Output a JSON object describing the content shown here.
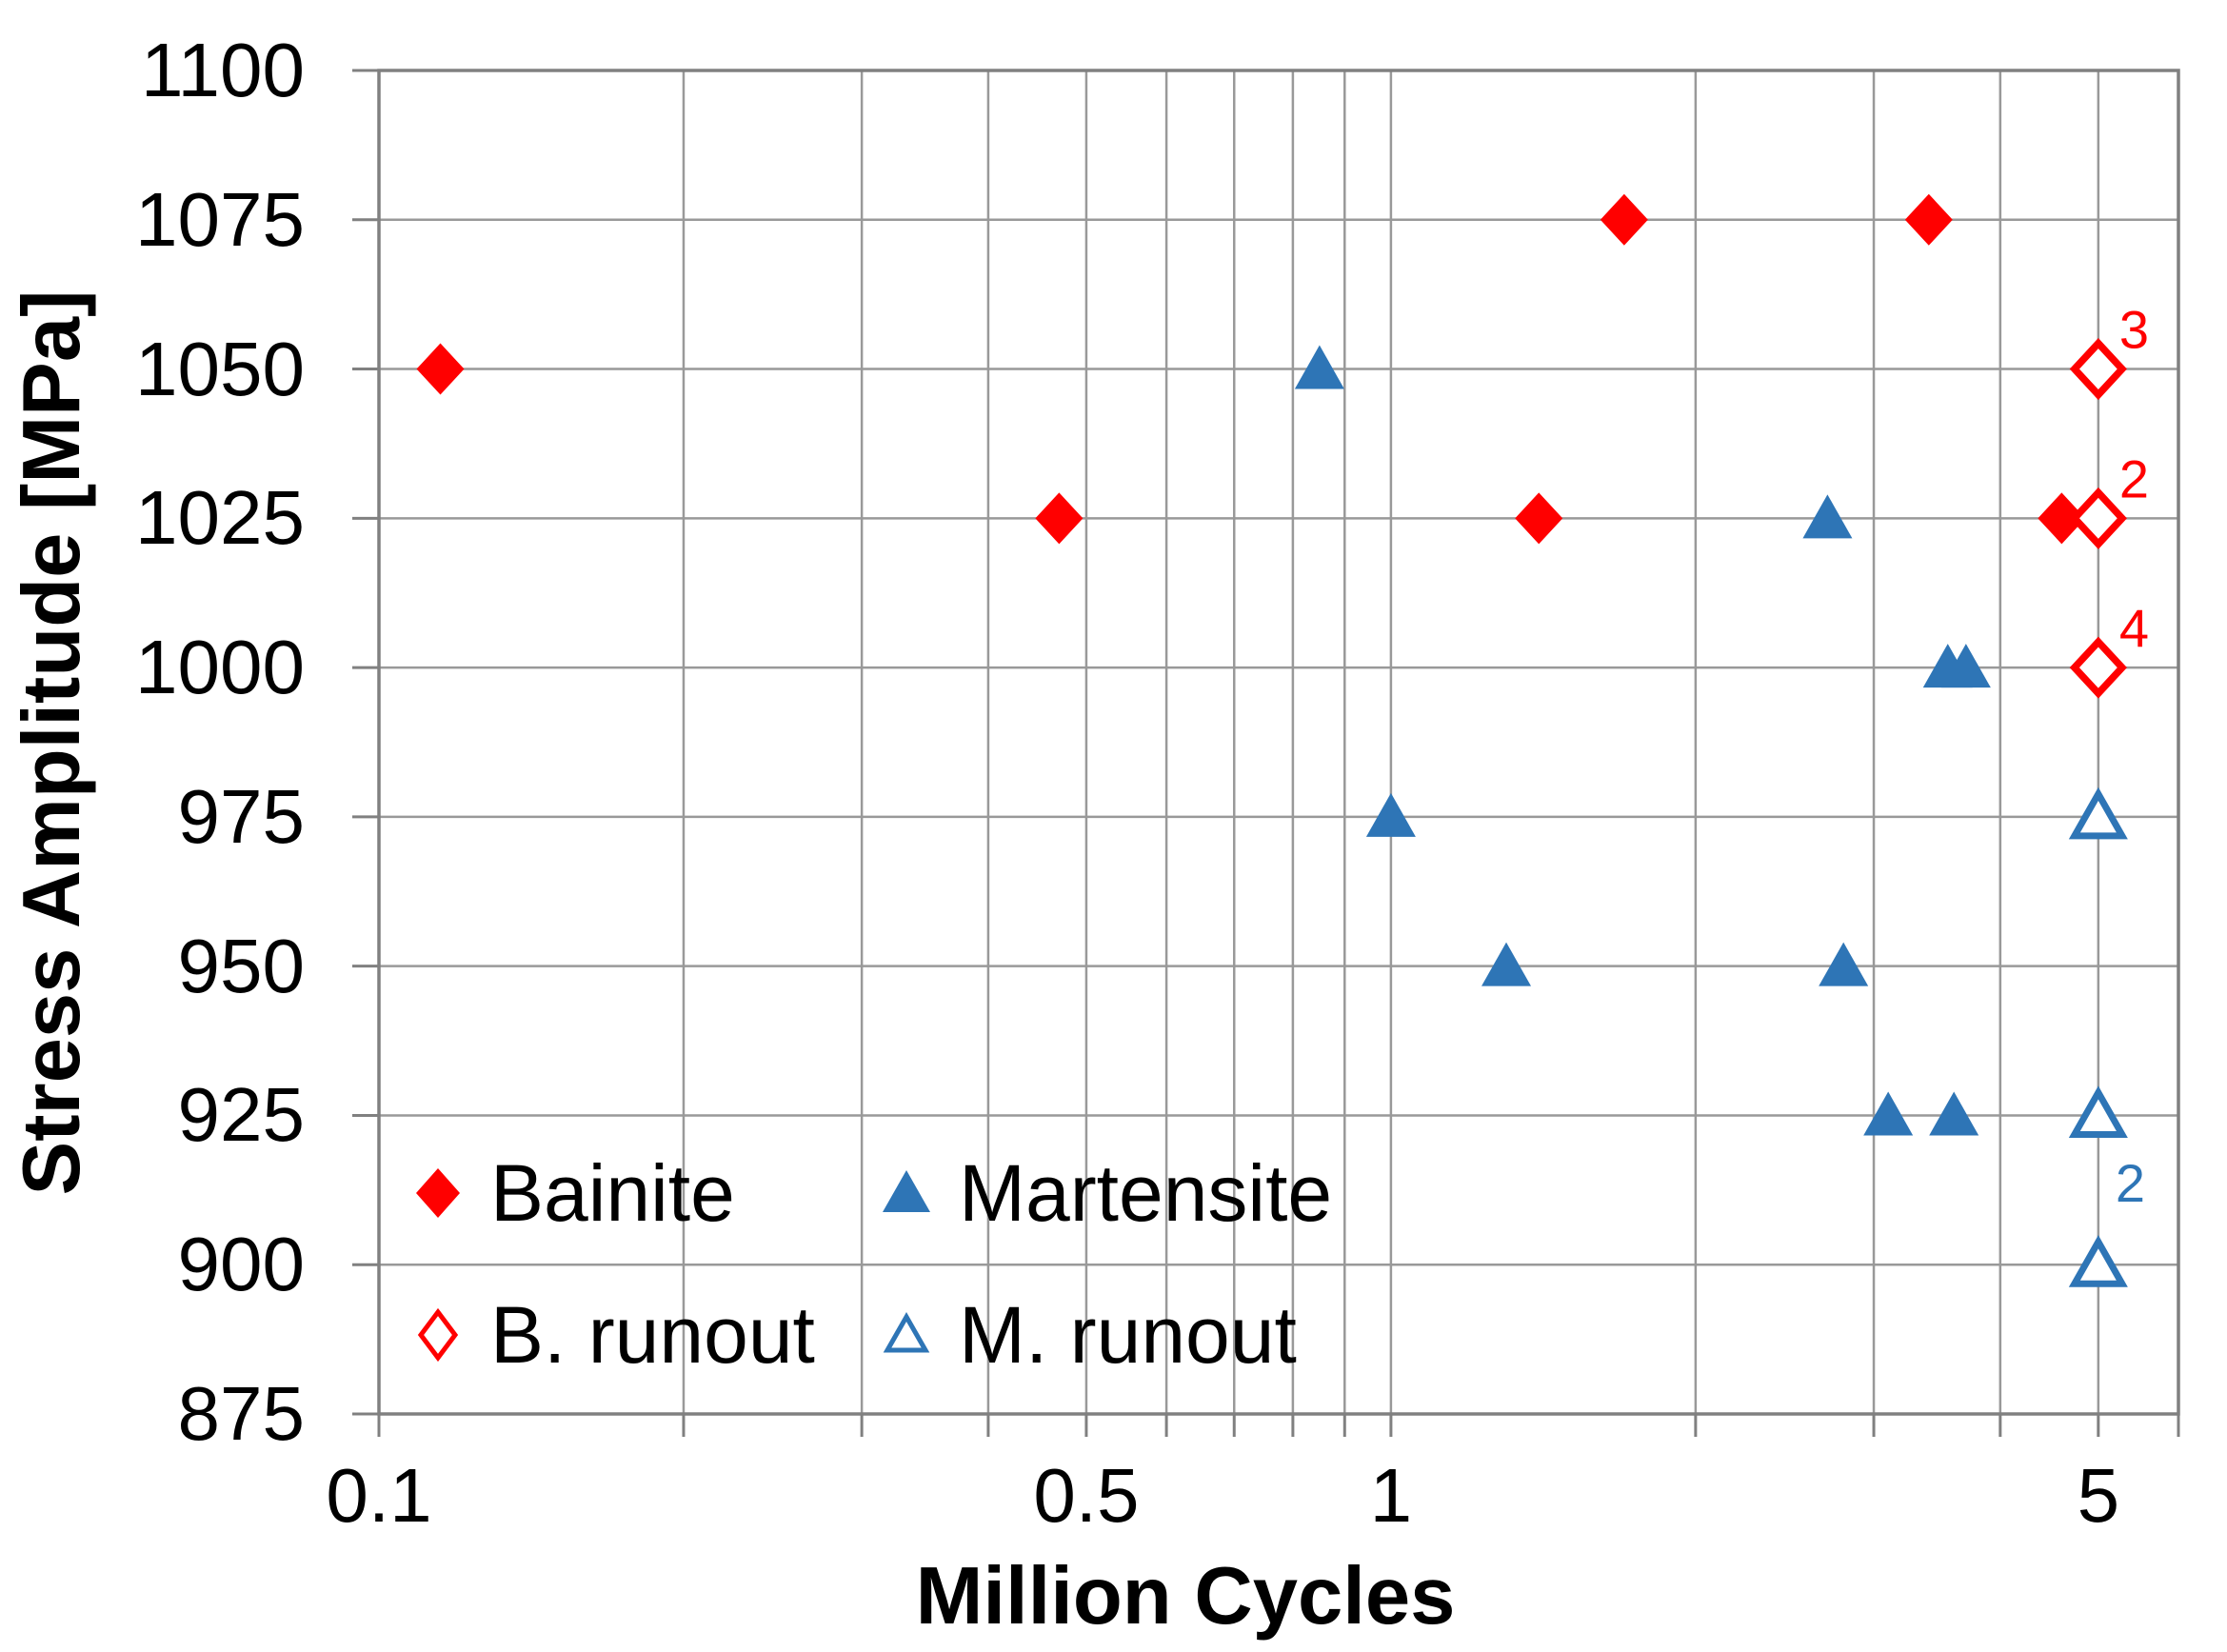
{
  "chart_data": {
    "type": "scatter",
    "title": "",
    "xlabel": "Million Cycles",
    "ylabel": "Stress Amplitude [MPa]",
    "x_axis": {
      "scale": "log",
      "min": 0.1,
      "max": 6,
      "gridline_values": [
        0.1,
        0.2,
        0.3,
        0.4,
        0.5,
        0.6,
        0.7,
        0.8,
        0.9,
        1,
        2,
        3,
        4,
        5,
        6
      ],
      "labeled_ticks": [
        {
          "v": 0.1,
          "label": "0.1"
        },
        {
          "v": 0.5,
          "label": "0.5"
        },
        {
          "v": 1,
          "label": "1"
        },
        {
          "v": 5,
          "label": "5"
        }
      ]
    },
    "y_axis": {
      "scale": "linear",
      "min": 875,
      "max": 1100,
      "step": 25,
      "tick_values": [
        875,
        900,
        925,
        950,
        975,
        1000,
        1025,
        1050,
        1075,
        1100
      ],
      "tick_labels": [
        "875",
        "900",
        "925",
        "950",
        "975",
        "1000",
        "1025",
        "1050",
        "1075",
        "1100"
      ]
    },
    "grid": "on",
    "legend_position": "inside bottom-left",
    "series": [
      {
        "name": "Bainite",
        "marker": "diamond",
        "fill": "solid",
        "color": "#FF0000",
        "points": [
          [
            0.115,
            1050
          ],
          [
            0.47,
            1025
          ],
          [
            1.4,
            1025
          ],
          [
            1.7,
            1075
          ],
          [
            3.4,
            1075
          ],
          [
            4.6,
            1025
          ]
        ]
      },
      {
        "name": "Martensite",
        "marker": "triangle",
        "fill": "solid",
        "color": "#2E75B6",
        "points": [
          [
            0.85,
            1050
          ],
          [
            1.0,
            975
          ],
          [
            1.3,
            950
          ],
          [
            2.7,
            1025
          ],
          [
            2.8,
            950
          ],
          [
            3.1,
            925
          ],
          [
            3.55,
            1000
          ],
          [
            3.6,
            925
          ],
          [
            3.7,
            1000
          ]
        ]
      },
      {
        "name": "B. runout",
        "marker": "diamond",
        "fill": "open",
        "color": "#FF0000",
        "points": [
          [
            5.0,
            1050
          ],
          [
            5.0,
            1025
          ],
          [
            5.0,
            1000
          ]
        ],
        "point_labels": [
          "3",
          "2",
          "4"
        ]
      },
      {
        "name": "M. runout",
        "marker": "triangle",
        "fill": "open",
        "color": "#2E75B6",
        "points": [
          [
            5.0,
            975
          ],
          [
            5.0,
            925
          ],
          [
            5.0,
            900
          ]
        ],
        "point_labels": [
          "",
          "",
          "2"
        ]
      }
    ],
    "legend": {
      "entries": [
        {
          "label": "Bainite",
          "series": "Bainite"
        },
        {
          "label": "Martensite",
          "series": "Martensite"
        },
        {
          "label": "B. runout",
          "series": "B. runout"
        },
        {
          "label": "M. runout",
          "series": "M. runout"
        }
      ]
    }
  },
  "colors": {
    "bainite_red": "#FF0000",
    "martensite_blue": "#2E75B6",
    "gridline": "#999999",
    "axis_border": "#808080",
    "text": "#000000",
    "background": "#FFFFFF"
  }
}
